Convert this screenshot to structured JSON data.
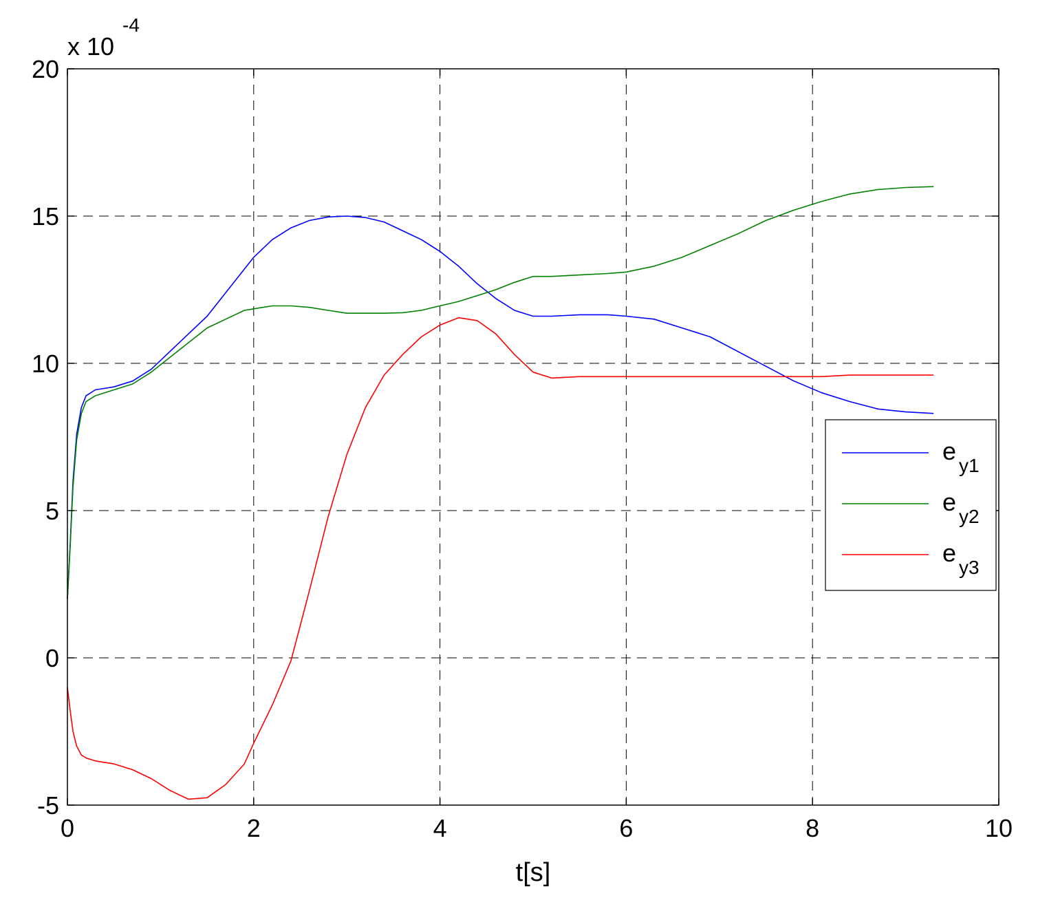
{
  "chart_data": {
    "type": "line",
    "xlabel": "t[s]",
    "ylabel": "",
    "exponent_label": "x 10",
    "exponent_power": "-4",
    "xlim": [
      0,
      10
    ],
    "ylim": [
      -5,
      20
    ],
    "xticks": [
      "0",
      "2",
      "4",
      "6",
      "8",
      "10"
    ],
    "yticks": [
      "-5",
      "0",
      "5",
      "10",
      "15",
      "20"
    ],
    "grid": true,
    "legend_position": "right",
    "series": [
      {
        "name": "e",
        "sub": "y1",
        "color": "#0000ff",
        "x": [
          0,
          0.03,
          0.06,
          0.1,
          0.15,
          0.2,
          0.3,
          0.5,
          0.7,
          0.9,
          1.1,
          1.3,
          1.5,
          1.7,
          1.9,
          2.0,
          2.2,
          2.4,
          2.6,
          2.8,
          3.0,
          3.2,
          3.4,
          3.6,
          3.8,
          4.0,
          4.2,
          4.4,
          4.6,
          4.8,
          5.0,
          5.2,
          5.5,
          5.8,
          6.0,
          6.3,
          6.6,
          6.9,
          7.2,
          7.5,
          7.8,
          8.1,
          8.4,
          8.7,
          9.0,
          9.3
        ],
        "y": [
          2.0,
          3.9,
          6.0,
          7.6,
          8.5,
          8.9,
          9.1,
          9.2,
          9.4,
          9.8,
          10.4,
          11.0,
          11.6,
          12.4,
          13.2,
          13.6,
          14.2,
          14.6,
          14.85,
          14.97,
          15.0,
          14.95,
          14.8,
          14.5,
          14.2,
          13.8,
          13.3,
          12.7,
          12.2,
          11.8,
          11.6,
          11.6,
          11.65,
          11.65,
          11.6,
          11.5,
          11.2,
          10.9,
          10.4,
          9.9,
          9.4,
          9.0,
          8.7,
          8.45,
          8.35,
          8.3
        ]
      },
      {
        "name": "e",
        "sub": "y2",
        "color": "#008000",
        "x": [
          0,
          0.03,
          0.06,
          0.1,
          0.15,
          0.2,
          0.3,
          0.5,
          0.7,
          0.9,
          1.1,
          1.3,
          1.5,
          1.7,
          1.9,
          2.0,
          2.2,
          2.4,
          2.6,
          2.8,
          3.0,
          3.2,
          3.4,
          3.6,
          3.8,
          4.0,
          4.2,
          4.4,
          4.6,
          4.8,
          5.0,
          5.2,
          5.5,
          5.8,
          6.0,
          6.3,
          6.6,
          6.9,
          7.2,
          7.5,
          7.8,
          8.1,
          8.4,
          8.7,
          9.0,
          9.3
        ],
        "y": [
          2.0,
          3.8,
          5.8,
          7.4,
          8.3,
          8.7,
          8.9,
          9.1,
          9.3,
          9.7,
          10.2,
          10.7,
          11.2,
          11.5,
          11.8,
          11.85,
          11.95,
          11.95,
          11.9,
          11.8,
          11.7,
          11.7,
          11.7,
          11.72,
          11.8,
          11.95,
          12.1,
          12.3,
          12.5,
          12.75,
          12.95,
          12.95,
          13.0,
          13.05,
          13.1,
          13.3,
          13.6,
          14.0,
          14.4,
          14.85,
          15.2,
          15.5,
          15.75,
          15.9,
          15.97,
          16.0
        ]
      },
      {
        "name": "e",
        "sub": "y3",
        "color": "#ff0000",
        "x": [
          0,
          0.03,
          0.06,
          0.1,
          0.15,
          0.2,
          0.3,
          0.5,
          0.7,
          0.9,
          1.1,
          1.3,
          1.5,
          1.7,
          1.9,
          2.0,
          2.2,
          2.4,
          2.6,
          2.8,
          3.0,
          3.2,
          3.4,
          3.6,
          3.8,
          4.0,
          4.2,
          4.4,
          4.6,
          4.8,
          5.0,
          5.2,
          5.5,
          5.8,
          6.0,
          6.3,
          6.6,
          6.9,
          7.2,
          7.5,
          7.8,
          8.1,
          8.4,
          8.7,
          9.0,
          9.3
        ],
        "y": [
          -1.0,
          -1.8,
          -2.5,
          -3.0,
          -3.3,
          -3.4,
          -3.5,
          -3.6,
          -3.8,
          -4.1,
          -4.5,
          -4.8,
          -4.75,
          -4.3,
          -3.6,
          -2.9,
          -1.6,
          -0.1,
          2.3,
          4.8,
          6.9,
          8.5,
          9.6,
          10.3,
          10.9,
          11.3,
          11.55,
          11.45,
          11.0,
          10.3,
          9.7,
          9.5,
          9.55,
          9.55,
          9.55,
          9.55,
          9.55,
          9.55,
          9.55,
          9.55,
          9.55,
          9.55,
          9.6,
          9.6,
          9.6,
          9.6
        ]
      }
    ]
  }
}
